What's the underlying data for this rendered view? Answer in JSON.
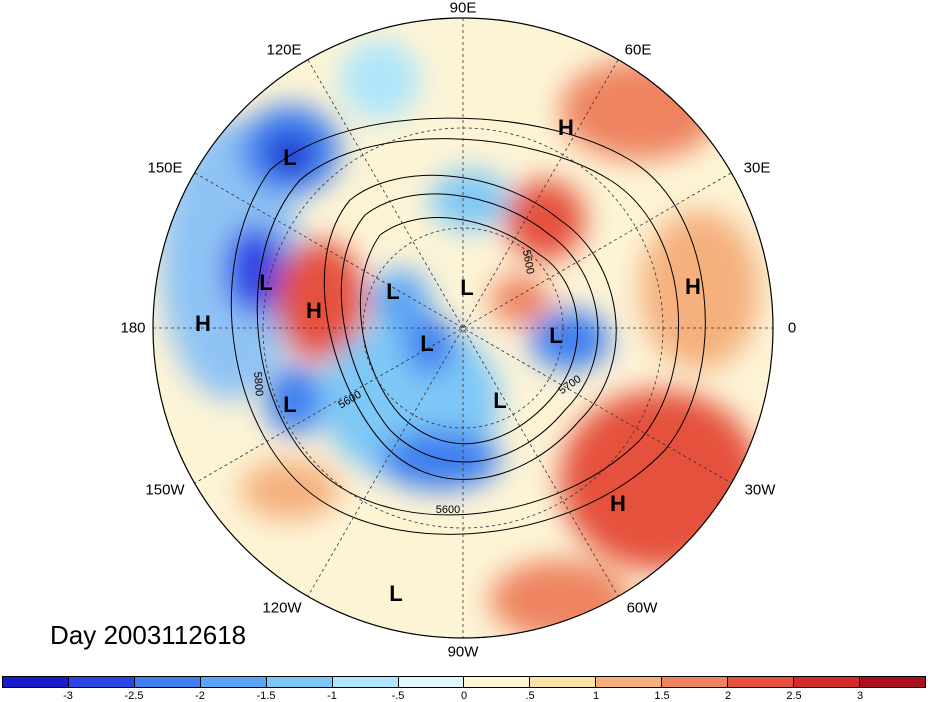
{
  "title": "Day 2003112618",
  "longitude_labels": [
    "90E",
    "60E",
    "30E",
    "0",
    "30W",
    "60W",
    "90W",
    "120W",
    "150W",
    "180",
    "150E",
    "120E"
  ],
  "pressure_centers": [
    {
      "type": "L"
    },
    {
      "type": "L"
    },
    {
      "type": "H"
    },
    {
      "type": "H"
    },
    {
      "type": "L"
    },
    {
      "type": "L"
    },
    {
      "type": "L"
    },
    {
      "type": "L"
    },
    {
      "type": "L"
    },
    {
      "type": "H"
    },
    {
      "type": "H"
    },
    {
      "type": "L"
    },
    {
      "type": "H"
    },
    {
      "type": "L"
    }
  ],
  "contour_labels": [
    "5600",
    "5700",
    "5600",
    "5800",
    "5600"
  ],
  "colorbar": {
    "ticks": [
      "-3",
      "-2.5",
      "-2",
      "-1.5",
      "-1",
      "-.5",
      "0",
      ".5",
      "1",
      "1.5",
      "2",
      "2.5",
      "3"
    ],
    "colors": [
      "#1a1acc",
      "#2a45e6",
      "#3d7ff0",
      "#5aa6f5",
      "#7ec8f7",
      "#aee6fb",
      "#dff6fc",
      "#fdf7d6",
      "#fbe2a6",
      "#f5b07e",
      "#ee8360",
      "#e5513e",
      "#d42a2a",
      "#a8101f"
    ]
  }
}
